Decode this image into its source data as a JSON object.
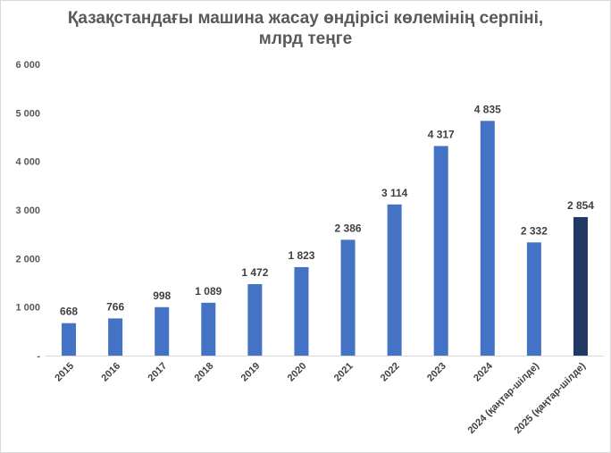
{
  "chart_data": {
    "type": "bar",
    "title_lines": [
      "Қазақстандағы машина жасау өндірісі көлемінің серпіні,",
      "млрд теңге"
    ],
    "categories": [
      "2015",
      "2016",
      "2017",
      "2018",
      "2019",
      "2020",
      "2021",
      "2022",
      "2023",
      "2024",
      "2024 (қаңтар-шілде)",
      "2025 (қаңтар-шілде)"
    ],
    "values": [
      668,
      766,
      998,
      1089,
      1472,
      1823,
      2386,
      3114,
      4317,
      4835,
      2332,
      2854
    ],
    "value_labels": [
      "668",
      "766",
      "998",
      "1 089",
      "1 472",
      "1 823",
      "2 386",
      "3 114",
      "4 317",
      "4 835",
      "2 332",
      "2 854"
    ],
    "y_ticks": [
      0,
      1000,
      2000,
      3000,
      4000,
      5000,
      6000
    ],
    "y_tick_labels": [
      "-",
      "1 000",
      "2 000",
      "3 000",
      "4 000",
      "5 000",
      "6 000"
    ],
    "ylim": [
      0,
      6000
    ],
    "grid": false,
    "legend": "none",
    "colors": {
      "bar": "#4472c4",
      "highlight_bar": "#1f3864"
    },
    "highlight_index": 11
  }
}
